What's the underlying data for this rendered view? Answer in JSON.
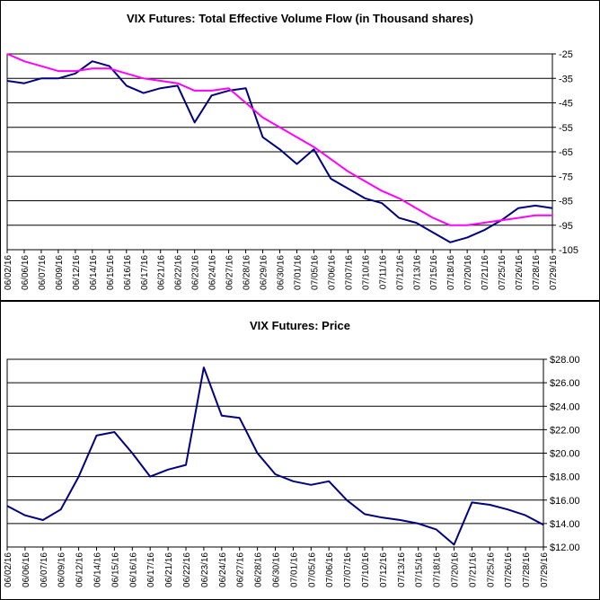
{
  "chart_data": [
    {
      "type": "line",
      "title": "VIX Futures: Total Effective Volume Flow (in Thousand shares)",
      "x_tick_labels": [
        "06/02/16",
        "06/06/16",
        "06/07/16",
        "06/09/16",
        "06/12/16",
        "06/14/16",
        "06/15/16",
        "06/16/16",
        "06/17/16",
        "06/21/16",
        "06/22/16",
        "06/23/16",
        "06/24/16",
        "06/27/16",
        "06/28/16",
        "06/29/16",
        "06/30/16",
        "07/01/16",
        "07/05/16",
        "07/06/16",
        "07/07/16",
        "07/10/16",
        "07/11/16",
        "07/12/16",
        "07/13/16",
        "07/15/16",
        "07/18/16",
        "07/20/16",
        "07/21/16",
        "07/25/16",
        "07/26/16",
        "07/28/16",
        "07/29/16"
      ],
      "y_ticks": [
        -25,
        -35,
        -45,
        -55,
        -65,
        -75,
        -85,
        -95,
        -105
      ],
      "y_tick_labels": [
        "-25",
        "-35",
        "-45",
        "-55",
        "-65",
        "-75",
        "-85",
        "-95",
        "-105"
      ],
      "ylim": [
        -105,
        -25
      ],
      "grid": "horizontal",
      "series": [
        {
          "color": "#000080",
          "x": [
            0,
            1,
            2,
            3,
            4,
            5,
            6,
            7,
            8,
            9,
            10,
            11,
            12,
            13,
            14,
            15,
            16,
            17,
            18,
            19,
            20,
            21,
            22,
            23,
            24,
            25,
            26,
            27,
            28,
            29,
            30,
            31,
            32
          ],
          "values": [
            -36,
            -37,
            -35,
            -35,
            -33,
            -28,
            -30,
            -38,
            -41,
            -39,
            -38,
            -53,
            -42,
            -40,
            -39,
            -59,
            -64,
            -70,
            -64,
            -76,
            -80,
            -84,
            -86,
            -92,
            -94,
            -98,
            -102,
            -100,
            -97,
            -93,
            -88,
            -87,
            -88
          ]
        },
        {
          "color": "#ff00ff",
          "x": [
            0,
            1,
            2,
            3,
            4,
            5,
            6,
            7,
            8,
            9,
            10,
            11,
            12,
            13,
            14,
            15,
            16,
            17,
            18,
            19,
            20,
            21,
            22,
            23,
            24,
            25,
            26,
            27,
            28,
            29,
            30,
            31,
            32
          ],
          "values": [
            -25,
            -28,
            -30,
            -32,
            -32,
            -31,
            -31,
            -33,
            -35,
            -36,
            -37,
            -40,
            -40,
            -39,
            -45,
            -51,
            -55,
            -59,
            -63,
            -68,
            -73,
            -77,
            -81,
            -84,
            -88,
            -92,
            -95,
            -95,
            -94,
            -93,
            -92,
            -91,
            -91
          ]
        }
      ]
    },
    {
      "type": "line",
      "title": "VIX Futures: Price",
      "x_tick_labels": [
        "06/02/16",
        "06/06/16",
        "06/07/16",
        "06/09/16",
        "06/12/16",
        "06/14/16",
        "06/15/16",
        "06/16/16",
        "06/17/16",
        "06/21/16",
        "06/22/16",
        "06/23/16",
        "06/24/16",
        "06/27/16",
        "06/28/16",
        "06/30/16",
        "07/01/16",
        "07/05/16",
        "07/06/16",
        "07/07/16",
        "07/10/16",
        "07/12/16",
        "07/13/16",
        "07/15/16",
        "07/18/16",
        "07/20/16",
        "07/21/16",
        "07/25/16",
        "07/26/16",
        "07/28/16",
        "07/29/16"
      ],
      "y_ticks": [
        12,
        14,
        16,
        18,
        20,
        22,
        24,
        26,
        28
      ],
      "y_tick_labels": [
        "$12.00",
        "$14.00",
        "$16.00",
        "$18.00",
        "$20.00",
        "$22.00",
        "$24.00",
        "$26.00",
        "$28.00"
      ],
      "ylim": [
        12,
        28
      ],
      "grid": "horizontal",
      "series": [
        {
          "color": "#000080",
          "x": [
            0,
            1,
            2,
            3,
            4,
            5,
            6,
            7,
            8,
            9,
            10,
            11,
            12,
            13,
            14,
            15,
            16,
            17,
            18,
            19,
            20,
            21,
            22,
            23,
            24,
            25,
            26,
            27,
            28,
            29,
            30
          ],
          "values": [
            15.5,
            14.7,
            14.3,
            15.2,
            18.0,
            21.5,
            21.8,
            20.0,
            18.0,
            18.6,
            19.0,
            27.3,
            23.2,
            23.0,
            20.0,
            18.2,
            17.6,
            17.3,
            17.6,
            16.0,
            14.8,
            14.5,
            14.3,
            14.0,
            13.5,
            12.2,
            15.8,
            15.6,
            15.2,
            14.7,
            13.9
          ]
        }
      ]
    }
  ]
}
